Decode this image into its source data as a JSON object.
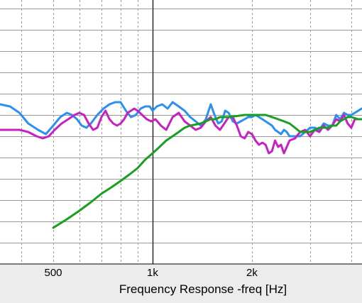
{
  "chart_data": {
    "type": "line",
    "title": "",
    "xlabel": "Frequency Response -freq [Hz]",
    "ylabel": "",
    "x_scale": "log",
    "xlim": [
      300,
      4300
    ],
    "ylim": [
      0,
      12.5
    ],
    "grid": true,
    "legend": "none",
    "x_major_ticks": [
      {
        "value": 500,
        "label": "500"
      },
      {
        "value": 1000,
        "label": "1k"
      },
      {
        "value": 2000,
        "label": "2k"
      }
    ],
    "x_grid_lines": [
      400,
      500,
      600,
      700,
      800,
      900,
      1000,
      2000,
      3000,
      4000
    ],
    "y_grid_lines": [
      1,
      2,
      3,
      4,
      5,
      6,
      7,
      8,
      9,
      10,
      11,
      12
    ],
    "series": [
      {
        "color": "#2d8ff0",
        "points": [
          [
            300,
            7.2
          ],
          [
            320,
            7.3
          ],
          [
            345,
            7.5
          ],
          [
            370,
            7.4
          ],
          [
            395,
            7.1
          ],
          [
            420,
            6.6
          ],
          [
            450,
            6.3
          ],
          [
            475,
            6.1
          ],
          [
            500,
            6.5
          ],
          [
            525,
            6.9
          ],
          [
            550,
            7.1
          ],
          [
            570,
            7.0
          ],
          [
            590,
            6.8
          ],
          [
            610,
            6.5
          ],
          [
            630,
            6.4
          ],
          [
            650,
            6.6
          ],
          [
            680,
            7.0
          ],
          [
            710,
            7.3
          ],
          [
            740,
            7.5
          ],
          [
            770,
            7.6
          ],
          [
            800,
            7.6
          ],
          [
            830,
            7.2
          ],
          [
            860,
            6.9
          ],
          [
            890,
            7.0
          ],
          [
            920,
            7.3
          ],
          [
            950,
            7.4
          ],
          [
            980,
            7.4
          ],
          [
            1000,
            7.2
          ],
          [
            1030,
            7.4
          ],
          [
            1070,
            7.5
          ],
          [
            1110,
            7.3
          ],
          [
            1150,
            7.6
          ],
          [
            1200,
            7.4
          ],
          [
            1250,
            7.2
          ],
          [
            1300,
            6.9
          ],
          [
            1350,
            6.7
          ],
          [
            1400,
            6.5
          ],
          [
            1450,
            6.8
          ],
          [
            1500,
            7.5
          ],
          [
            1540,
            7.0
          ],
          [
            1580,
            6.6
          ],
          [
            1620,
            6.7
          ],
          [
            1660,
            7.2
          ],
          [
            1700,
            7.1
          ],
          [
            1750,
            6.7
          ],
          [
            1800,
            6.6
          ],
          [
            1850,
            6.7
          ],
          [
            1900,
            6.8
          ],
          [
            1950,
            6.9
          ],
          [
            2000,
            6.9
          ],
          [
            2050,
            7.0
          ],
          [
            2100,
            6.9
          ],
          [
            2150,
            6.8
          ],
          [
            2200,
            6.7
          ],
          [
            2250,
            6.6
          ],
          [
            2300,
            6.5
          ],
          [
            2350,
            6.3
          ],
          [
            2400,
            6.2
          ],
          [
            2450,
            6.1
          ],
          [
            2500,
            6.3
          ],
          [
            2550,
            6.2
          ],
          [
            2600,
            6.0
          ],
          [
            2700,
            6.0
          ],
          [
            2800,
            6.0
          ],
          [
            2900,
            6.2
          ],
          [
            3000,
            6.4
          ],
          [
            3100,
            6.4
          ],
          [
            3200,
            6.3
          ],
          [
            3300,
            6.6
          ],
          [
            3400,
            6.5
          ],
          [
            3500,
            6.5
          ],
          [
            3600,
            7.0
          ],
          [
            3700,
            6.8
          ],
          [
            3800,
            7.1
          ],
          [
            3900,
            7.0
          ],
          [
            4000,
            7.0
          ],
          [
            4100,
            7.1
          ],
          [
            4200,
            7.2
          ],
          [
            4300,
            7.3
          ]
        ]
      },
      {
        "color": "#c722c1",
        "points": [
          [
            300,
            6.0
          ],
          [
            320,
            6.2
          ],
          [
            345,
            6.3
          ],
          [
            370,
            6.3
          ],
          [
            395,
            6.3
          ],
          [
            420,
            6.2
          ],
          [
            445,
            6.0
          ],
          [
            465,
            5.9
          ],
          [
            485,
            6.0
          ],
          [
            505,
            6.3
          ],
          [
            530,
            6.6
          ],
          [
            555,
            6.8
          ],
          [
            580,
            7.0
          ],
          [
            600,
            7.1
          ],
          [
            620,
            7.0
          ],
          [
            640,
            6.6
          ],
          [
            660,
            6.3
          ],
          [
            680,
            6.4
          ],
          [
            700,
            6.9
          ],
          [
            720,
            7.2
          ],
          [
            740,
            6.8
          ],
          [
            760,
            6.6
          ],
          [
            780,
            6.5
          ],
          [
            800,
            6.6
          ],
          [
            820,
            6.8
          ],
          [
            840,
            7.1
          ],
          [
            860,
            7.2
          ],
          [
            880,
            7.3
          ],
          [
            900,
            7.2
          ],
          [
            930,
            7.0
          ],
          [
            960,
            6.8
          ],
          [
            990,
            6.7
          ],
          [
            1020,
            6.8
          ],
          [
            1060,
            6.5
          ],
          [
            1100,
            6.3
          ],
          [
            1150,
            6.9
          ],
          [
            1200,
            7.1
          ],
          [
            1250,
            6.7
          ],
          [
            1300,
            6.5
          ],
          [
            1350,
            6.3
          ],
          [
            1400,
            6.4
          ],
          [
            1450,
            6.7
          ],
          [
            1500,
            6.9
          ],
          [
            1550,
            6.5
          ],
          [
            1600,
            6.3
          ],
          [
            1650,
            6.6
          ],
          [
            1700,
            6.9
          ],
          [
            1750,
            6.9
          ],
          [
            1800,
            6.5
          ],
          [
            1850,
            6.0
          ],
          [
            1900,
            5.9
          ],
          [
            1950,
            6.2
          ],
          [
            2000,
            6.1
          ],
          [
            2050,
            5.8
          ],
          [
            2100,
            5.6
          ],
          [
            2150,
            5.7
          ],
          [
            2200,
            5.6
          ],
          [
            2250,
            5.2
          ],
          [
            2300,
            5.3
          ],
          [
            2350,
            5.8
          ],
          [
            2400,
            5.5
          ],
          [
            2450,
            5.6
          ],
          [
            2500,
            5.2
          ],
          [
            2550,
            5.5
          ],
          [
            2600,
            5.8
          ],
          [
            2700,
            5.9
          ],
          [
            2800,
            6.2
          ],
          [
            2900,
            6.3
          ],
          [
            3000,
            6.0
          ],
          [
            3100,
            6.3
          ],
          [
            3200,
            6.2
          ],
          [
            3300,
            6.5
          ],
          [
            3400,
            6.3
          ],
          [
            3500,
            6.5
          ],
          [
            3600,
            6.8
          ],
          [
            3700,
            6.7
          ],
          [
            3800,
            7.0
          ],
          [
            3900,
            6.6
          ],
          [
            4000,
            6.4
          ],
          [
            4100,
            6.8
          ],
          [
            4200,
            6.8
          ],
          [
            4300,
            6.8
          ]
        ]
      },
      {
        "color": "#17a020",
        "points": [
          [
            500,
            1.7
          ],
          [
            550,
            2.1
          ],
          [
            600,
            2.5
          ],
          [
            650,
            2.9
          ],
          [
            700,
            3.3
          ],
          [
            750,
            3.6
          ],
          [
            800,
            3.9
          ],
          [
            850,
            4.2
          ],
          [
            900,
            4.5
          ],
          [
            950,
            4.9
          ],
          [
            1000,
            5.2
          ],
          [
            1050,
            5.5
          ],
          [
            1100,
            5.8
          ],
          [
            1150,
            6.0
          ],
          [
            1200,
            6.2
          ],
          [
            1250,
            6.4
          ],
          [
            1300,
            6.5
          ],
          [
            1350,
            6.55
          ],
          [
            1400,
            6.6
          ],
          [
            1450,
            6.7
          ],
          [
            1500,
            6.8
          ],
          [
            1550,
            6.8
          ],
          [
            1600,
            6.9
          ],
          [
            1700,
            6.9
          ],
          [
            1800,
            6.95
          ],
          [
            1900,
            7.0
          ],
          [
            2000,
            7.0
          ],
          [
            2100,
            7.0
          ],
          [
            2200,
            7.0
          ],
          [
            2300,
            6.9
          ],
          [
            2400,
            6.8
          ],
          [
            2500,
            6.7
          ],
          [
            2600,
            6.6
          ],
          [
            2700,
            6.4
          ],
          [
            2800,
            6.2
          ],
          [
            2900,
            6.2
          ],
          [
            3000,
            6.2
          ],
          [
            3100,
            6.3
          ],
          [
            3200,
            6.4
          ],
          [
            3300,
            6.4
          ],
          [
            3400,
            6.4
          ],
          [
            3500,
            6.5
          ],
          [
            3600,
            6.5
          ],
          [
            3700,
            6.7
          ],
          [
            3800,
            6.8
          ],
          [
            3900,
            6.9
          ],
          [
            4000,
            6.9
          ],
          [
            4100,
            6.85
          ],
          [
            4200,
            6.8
          ],
          [
            4300,
            6.8
          ]
        ]
      }
    ]
  }
}
